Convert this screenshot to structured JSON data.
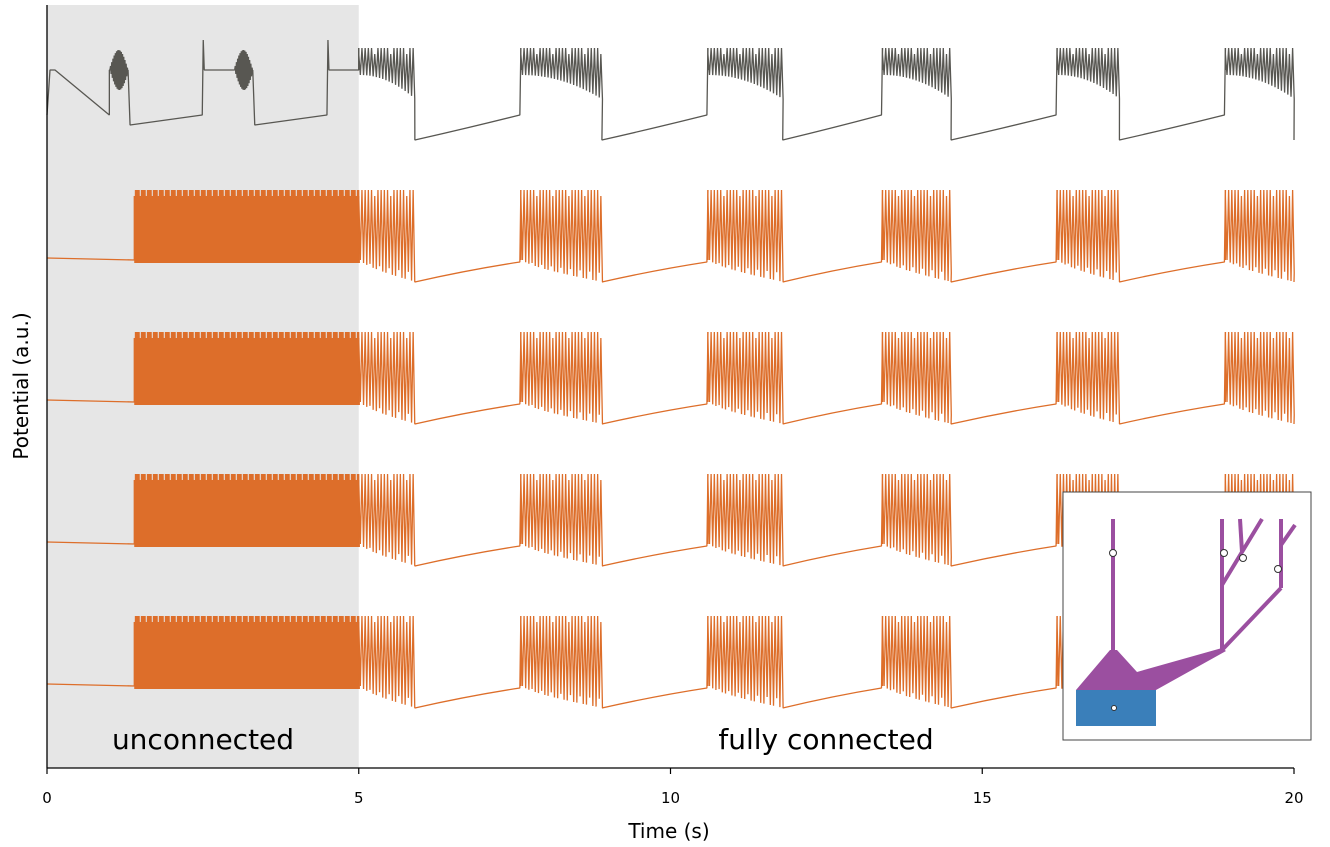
{
  "chart_data": {
    "type": "line",
    "xlabel": "Time (s)",
    "ylabel": "Potential (a.u.)",
    "xlim": [
      0,
      20
    ],
    "xticks": [
      0,
      5,
      10,
      15,
      20
    ],
    "shade": [
      0,
      5
    ],
    "annotations": [
      "unconnected",
      "fully connected"
    ],
    "series": [
      {
        "color": "#585752",
        "bursts": [
          [
            1.0,
            1.3
          ],
          [
            3.0,
            3.3
          ],
          [
            5.0,
            5.9
          ],
          [
            7.6,
            8.9
          ],
          [
            10.6,
            11.8
          ],
          [
            13.4,
            14.5
          ],
          [
            16.2,
            17.2
          ],
          [
            18.9,
            20
          ]
        ]
      },
      {
        "color": "#dd6e2a",
        "bursts": [
          [
            1.4,
            5.0
          ],
          [
            5.0,
            5.9
          ],
          [
            7.6,
            8.9
          ],
          [
            10.6,
            11.8
          ],
          [
            13.4,
            14.5
          ],
          [
            16.2,
            17.2
          ],
          [
            18.9,
            20
          ]
        ]
      },
      {
        "color": "#dd6e2a",
        "bursts": [
          [
            1.4,
            5.0
          ],
          [
            5.0,
            5.9
          ],
          [
            7.6,
            8.9
          ],
          [
            10.6,
            11.8
          ],
          [
            13.4,
            14.5
          ],
          [
            16.2,
            17.2
          ],
          [
            18.9,
            20
          ]
        ]
      },
      {
        "color": "#dd6e2a",
        "bursts": [
          [
            1.4,
            5.0
          ],
          [
            5.0,
            5.9
          ],
          [
            7.6,
            8.9
          ],
          [
            10.6,
            11.8
          ],
          [
            13.4,
            14.5
          ],
          [
            16.2,
            17.2
          ],
          [
            18.9,
            20
          ]
        ]
      },
      {
        "color": "#dd6e2a",
        "bursts": [
          [
            1.4,
            5.0
          ],
          [
            5.0,
            5.9
          ],
          [
            7.6,
            8.9
          ],
          [
            10.6,
            11.8
          ],
          [
            13.4,
            14.5
          ],
          [
            16.2,
            17.2
          ],
          [
            18.9,
            20
          ]
        ]
      }
    ]
  }
}
